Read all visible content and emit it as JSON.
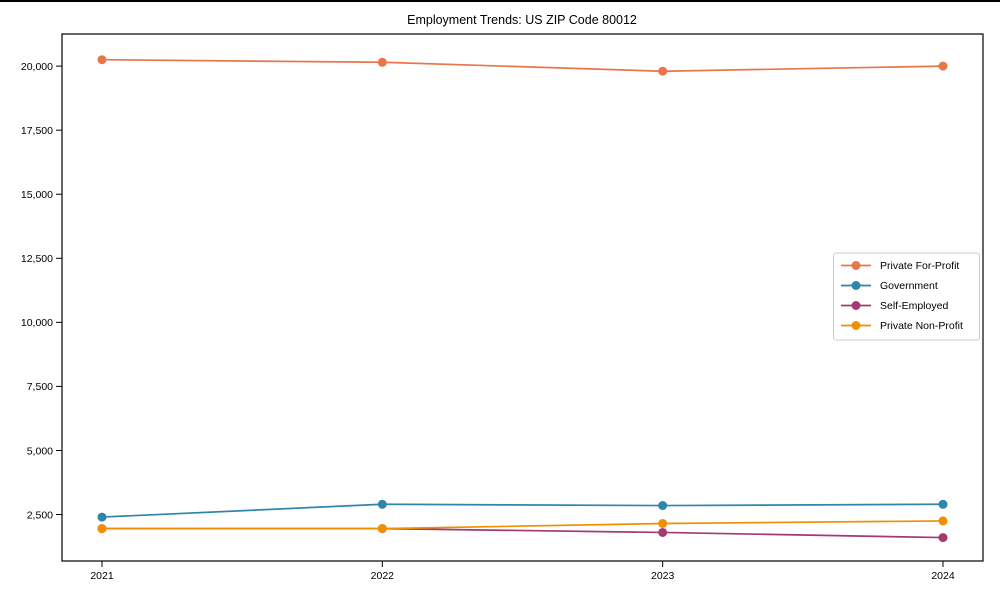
{
  "chart_data": {
    "type": "line",
    "title": "Employment Trends: US ZIP Code 80012",
    "xlabel": "",
    "ylabel": "",
    "categories": [
      "2021",
      "2022",
      "2023",
      "2024"
    ],
    "series": [
      {
        "name": "Private For-Profit",
        "color": "#E8764B",
        "values": [
          20250,
          20150,
          19800,
          20000
        ]
      },
      {
        "name": "Government",
        "color": "#2E86AB",
        "values": [
          2400,
          2900,
          2850,
          2900
        ]
      },
      {
        "name": "Self-Employed",
        "color": "#A23B72",
        "values": [
          1950,
          1950,
          1800,
          1600
        ]
      },
      {
        "name": "Private Non-Profit",
        "color": "#F18F01",
        "values": [
          1950,
          1950,
          2150,
          2250
        ]
      }
    ],
    "y_ticks": [
      {
        "value": 2500,
        "label": "2,500"
      },
      {
        "value": 5000,
        "label": "5,000"
      },
      {
        "value": 7500,
        "label": "7,500"
      },
      {
        "value": 10000,
        "label": "10,000"
      },
      {
        "value": 12500,
        "label": "12,500"
      },
      {
        "value": 15000,
        "label": "15,000"
      },
      {
        "value": 17500,
        "label": "17,500"
      },
      {
        "value": 20000,
        "label": "20,000"
      }
    ],
    "ylim": [
      686,
      21253
    ],
    "grid": false,
    "legend_position": "center right",
    "axis_color": "#000000",
    "background_color": "#ffffff",
    "top_border_color": "#000000"
  }
}
